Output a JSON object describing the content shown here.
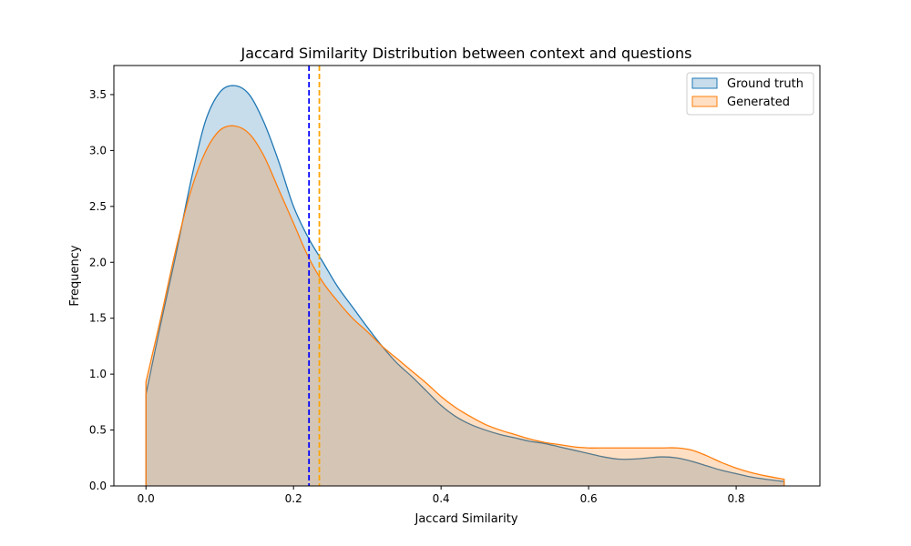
{
  "chart_data": {
    "type": "area",
    "title": "Jaccard Similarity Distribution between context and questions",
    "xlabel": "Jaccard Similarity",
    "ylabel": "Frequency",
    "xlim": [
      -0.0435,
      0.9135
    ],
    "ylim": [
      0,
      3.76
    ],
    "x_ticks": [
      0.0,
      0.2,
      0.4,
      0.6,
      0.8
    ],
    "x_tick_labels": [
      "0.0",
      "0.2",
      "0.4",
      "0.6",
      "0.8"
    ],
    "y_ticks": [
      0.0,
      0.5,
      1.0,
      1.5,
      2.0,
      2.5,
      3.0,
      3.5
    ],
    "y_tick_labels": [
      "0.0",
      "0.5",
      "1.0",
      "1.5",
      "2.0",
      "2.5",
      "3.0",
      "3.5"
    ],
    "grid": false,
    "legend_position": "top-right",
    "series": [
      {
        "name": "Ground truth",
        "color": "#1f77b4",
        "fill_color": "#1f77b4",
        "x": [
          0,
          0.02,
          0.04,
          0.06,
          0.08,
          0.1,
          0.12,
          0.14,
          0.16,
          0.18,
          0.2,
          0.22,
          0.24,
          0.26,
          0.28,
          0.3,
          0.32,
          0.34,
          0.36,
          0.38,
          0.4,
          0.42,
          0.44,
          0.46,
          0.48,
          0.5,
          0.52,
          0.54,
          0.56,
          0.58,
          0.6,
          0.62,
          0.64,
          0.66,
          0.68,
          0.7,
          0.72,
          0.74,
          0.76,
          0.78,
          0.8,
          0.82,
          0.84,
          0.865
        ],
        "y": [
          0.82,
          1.45,
          2.05,
          2.7,
          3.25,
          3.52,
          3.58,
          3.5,
          3.25,
          2.9,
          2.5,
          2.22,
          2.0,
          1.78,
          1.6,
          1.42,
          1.25,
          1.1,
          0.98,
          0.85,
          0.72,
          0.62,
          0.55,
          0.5,
          0.46,
          0.43,
          0.4,
          0.38,
          0.35,
          0.32,
          0.29,
          0.26,
          0.24,
          0.24,
          0.25,
          0.26,
          0.25,
          0.22,
          0.18,
          0.14,
          0.11,
          0.08,
          0.06,
          0.04
        ]
      },
      {
        "name": "Generated",
        "color": "#ff7f0e",
        "fill_color": "#ff7f0e",
        "x": [
          0,
          0.02,
          0.04,
          0.06,
          0.08,
          0.1,
          0.12,
          0.14,
          0.16,
          0.18,
          0.2,
          0.22,
          0.24,
          0.26,
          0.28,
          0.3,
          0.32,
          0.34,
          0.36,
          0.38,
          0.4,
          0.42,
          0.44,
          0.46,
          0.48,
          0.5,
          0.52,
          0.54,
          0.56,
          0.58,
          0.6,
          0.62,
          0.64,
          0.66,
          0.68,
          0.7,
          0.72,
          0.74,
          0.76,
          0.78,
          0.8,
          0.82,
          0.84,
          0.865
        ],
        "y": [
          0.93,
          1.5,
          2.1,
          2.62,
          2.98,
          3.18,
          3.22,
          3.15,
          2.95,
          2.65,
          2.35,
          2.05,
          1.82,
          1.65,
          1.5,
          1.38,
          1.25,
          1.14,
          1.03,
          0.92,
          0.8,
          0.7,
          0.62,
          0.55,
          0.5,
          0.46,
          0.42,
          0.39,
          0.37,
          0.35,
          0.34,
          0.34,
          0.34,
          0.34,
          0.34,
          0.34,
          0.34,
          0.32,
          0.27,
          0.21,
          0.16,
          0.12,
          0.09,
          0.06
        ]
      }
    ],
    "vlines": [
      {
        "x": 0.221,
        "color": "#0000ff",
        "style": "dashed"
      },
      {
        "x": 0.235,
        "color": "#ffa500",
        "style": "dashed"
      }
    ]
  }
}
